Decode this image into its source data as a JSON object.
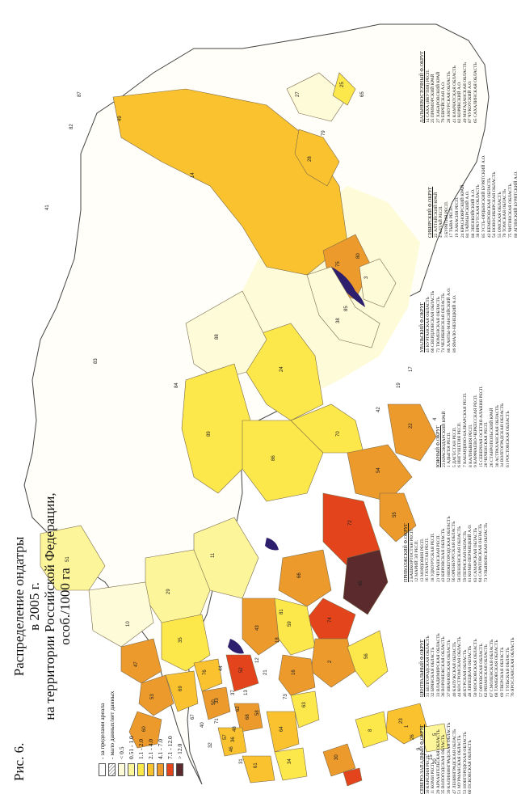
{
  "figure": {
    "label": "Рис. 6.",
    "title_lines": [
      "Распределение ондатры",
      "в 2005 г.",
      "на территории Российской Федерации,",
      "особ./1000 га"
    ]
  },
  "legend": {
    "items": [
      {
        "label": "- за пределами ареала",
        "color": "#ffffff",
        "hatch": false
      },
      {
        "label": "- мало данных/нет данных",
        "color": "#ffffff",
        "hatch": true
      },
      {
        "label": "< 0.5",
        "color": "#fefbd8"
      },
      {
        "label": "0.51 - 1.0",
        "color": "#fdf59a"
      },
      {
        "label": "1.1 - 2.0",
        "color": "#fde84c"
      },
      {
        "label": "2.1 - 4.0",
        "color": "#f9c22e"
      },
      {
        "label": "4.1 - 7.0",
        "color": "#ec9a2c"
      },
      {
        "label": "7.1 - 12.0",
        "color": "#e4441c"
      },
      {
        "label": "> 12.0",
        "color": "#5a2a2c"
      }
    ]
  },
  "districts": [
    {
      "title": "СЕВЕРО-ЗАПАДНЫЙ Ф.ОКРУГ",
      "items": [
        "10 КАРЕЛИЯ РЕСП.",
        "11 КОМИ РЕСП.",
        "29 АРХАНГЕЛЬСКАЯ ОБЛАСТЬ",
        "35 ВОЛОГОДСКАЯ ОБЛАСТЬ",
        "39 КАЛИНИНГРАДСКАЯ ОБЛАСТЬ",
        "47 ЛЕНИНГРАДСКАЯ ОБЛАСТЬ",
        "51 МУРМАНСКАЯ ОБЛАСТЬ",
        "53 НОВГОРОДСКАЯ ОБЛАСТЬ",
        "60 ПСКОВСКАЯ ОБЛАСТЬ"
      ]
    },
    {
      "title": "ЦЕНТРАЛЬНЫЙ Ф.ОКРУГ",
      "items": [
        "31 БЕЛГОРОДСКАЯ ОБЛАСТЬ",
        "32 БРЯНСКАЯ ОБЛАСТЬ",
        "33 ВЛАДИМИРСКАЯ ОБЛАСТЬ",
        "36 ВОРОНЕЖСКАЯ ОБЛАСТЬ",
        "37 ИВАНОВСКАЯ ОБЛАСТЬ",
        "40 КАЛУЖСКАЯ ОБЛАСТЬ",
        "44 КОСТРОМСКАЯ ОБЛАСТЬ",
        "46 КУРСКАЯ ОБЛАСТЬ",
        "48 ЛИПЕЦКАЯ ОБЛАСТЬ",
        "50 МОСКОВСКАЯ ОБЛАСТЬ",
        "57 ОРЛОВСКАЯ ОБЛАСТЬ",
        "62 РЯЗАНСКАЯ ОБЛАСТЬ",
        "67 СМОЛЕНСКАЯ ОБЛАСТЬ",
        "68 ТАМБОВСКАЯ ОБЛАСТЬ",
        "69 ТВЕРСКАЯ ОБЛАСТЬ",
        "71 ТУЛЬСКАЯ ОБЛАСТЬ",
        "76 ЯРОСЛАВСКАЯ ОБЛАСТЬ"
      ]
    },
    {
      "title": "ПРИВОЛЖСКИЙ Ф.ОКРУГ",
      "items": [
        "2 БАШКОРТОСТАН РЕСП.",
        "12 МАРИЙ ЭЛ РЕСП.",
        "13 МОРДОВИЯ РЕСП.",
        "16 ТАТАРСТАН РЕСП.",
        "18 УДМУРТСКАЯ РЕСП.",
        "21 ЧУВАШСКАЯ РЕСП.",
        "43 КИРОВСКАЯ ОБЛАСТЬ",
        "52 НИЖЕГОРОДСКАЯ ОБЛАСТЬ",
        "56 ОРЕНБУРГСКАЯ ОБЛАСТЬ",
        "58 ПЕНЗЕНСКАЯ ОБЛАСТЬ",
        "59 ПЕРМСКАЯ ОБЛАСТЬ",
        "81 КОМИ-ПЕРМЯЦКИЙ А.О.",
        "63 САМАРСКАЯ ОБЛАСТЬ",
        "64 САРАТОВСКАЯ ОБЛАСТЬ",
        "73 УЛЬЯНОВСКАЯ ОБЛАСТЬ"
      ]
    },
    {
      "title": "ЮЖНЫЙ Ф.ОКРУГ",
      "items": [
        "23 КРАСНОДАРСКИЙ КРАЙ",
        "1 АДЫГЕЯ РЕСП.",
        "5 ДАГЕСТАН РЕСП.",
        "6 ИНГУШЕТИЯ РЕСП.",
        "7 КАБАРДИНО-БАЛКАРСКАЯ РЕСП.",
        "8 КАЛМЫКИЯ РЕСП.",
        "9 КАРАЧАЕВО-ЧЕРКЕССКАЯ РЕСП.",
        "15 СЕВЕРНАЯ ОСЕТИЯ-АЛАНИЯ РЕСП.",
        "20 ЧЕЧЕНСКАЯ РЕСП.",
        "26 СТАВРОПОЛЬСКИЙ КРАЙ",
        "30 АСТРАХАНСКАЯ ОБЛАСТЬ",
        "34 ВОЛГОГРАДСКАЯ ОБЛАСТЬ",
        "61 РОСТОВСКАЯ ОБЛАСТЬ"
      ]
    },
    {
      "title": "УРАЛЬСКИЙ Ф.ОКРУГ",
      "items": [
        "45 КУРГАНСКАЯ ОБЛАСТЬ",
        "66 СВЕРДЛОВСКАЯ ОБЛАСТЬ",
        "72 ТЮМЕНСКАЯ ОБЛАСТЬ",
        "74 ЧЕЛЯБИНСКАЯ ОБЛАСТЬ",
        "86 ХАНТЫ-МАНСИЙСКИЙ А.О.",
        "89 ЯМАЛО-НЕНЕЦКИЙ А.О."
      ]
    },
    {
      "title": "СИБИРСКИЙ Ф.ОКРУГ",
      "items": [
        "22 АЛТАЙСКИЙ КРАЙ",
        "4 АЛТАЙ РЕСП.",
        "3 БУРЯТИЯ РЕСП.",
        "17 ТЫВА РЕСП.",
        "19 ХАКАСИЯ РЕСП.",
        "24 КРАСНОЯРСКИЙ КРАЙ",
        "84 ТАЙМЫРСКИЙ А.О.",
        "88 ЭВЕНКИЙСКИЙ А.О.",
        "38 ИРКУТСКАЯ ОБЛАСТЬ",
        "85 УСТЬ-ОРДЫНСКИЙ БУРЯТСКИЙ А.О.",
        "42 КЕМЕРОВСКАЯ ОБЛАСТЬ",
        "54 НОВОСИБИРСКАЯ ОБЛАСТЬ",
        "55 ОМСКАЯ ОБЛАСТЬ",
        "70 ТОМСКАЯ ОБЛАСТЬ",
        "75 ЧИТИНСКАЯ ОБЛАСТЬ",
        "80 АГИНСКИЙ БУРЯТСКИЙ А.О."
      ]
    },
    {
      "title": "ДАЛЬНЕВОСТОЧНЫЙ Ф.ОКРУГ",
      "items": [
        "14 САХА (ЯКУТИЯ) РЕСП.",
        "25 ПРИМОРСКИЙ КРАЙ",
        "27 ХАБАРОВСКИЙ КРАЙ",
        "79 ЕВРЕЙСКАЯ А.О.",
        "28 АМУРСКАЯ ОБЛАСТЬ",
        "41 КАМЧАТСКАЯ ОБЛАСТЬ",
        "82 КОРЯКСКИЙ А.О.",
        "49 МАГАДАНСКАЯ ОБЛАСТЬ",
        "87 ЧУКОТСКИЙ А.О.",
        "65 САХАЛИНСКАЯ ОБЛАСТЬ"
      ]
    }
  ],
  "region_labels": [
    "10",
    "11",
    "29",
    "51",
    "35",
    "53",
    "47",
    "60",
    "69",
    "76",
    "44",
    "37",
    "33",
    "50",
    "67",
    "40",
    "32",
    "57",
    "71",
    "62",
    "52",
    "43",
    "12",
    "21",
    "18",
    "59",
    "81",
    "16",
    "73",
    "63",
    "58",
    "64",
    "13",
    "68",
    "48",
    "46",
    "36",
    "31",
    "61",
    "34",
    "30",
    "8",
    "23",
    "26",
    "9",
    "7",
    "15",
    "20",
    "5",
    "1",
    "2",
    "56",
    "74",
    "66",
    "45",
    "72",
    "86",
    "89",
    "55",
    "54",
    "70",
    "22",
    "42",
    "4",
    "19",
    "17",
    "24",
    "88",
    "84",
    "38",
    "85",
    "3",
    "75",
    "80",
    "14",
    "28",
    "27",
    "79",
    "25",
    "65",
    "49",
    "82",
    "87",
    "41",
    "83"
  ]
}
